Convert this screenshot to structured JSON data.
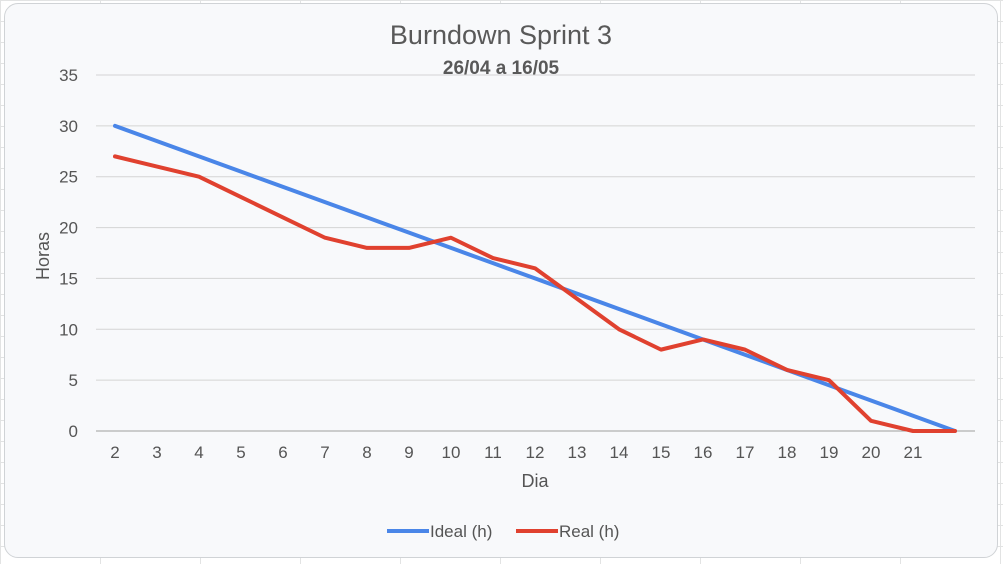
{
  "chart_data": {
    "type": "line",
    "title": "Burndown Sprint 3",
    "subtitle": "26/04 a 16/05",
    "xlabel": "Dia",
    "ylabel": "Horas",
    "ylim": [
      0,
      35
    ],
    "yticks": [
      0,
      5,
      10,
      15,
      20,
      25,
      30,
      35
    ],
    "categories": [
      "2",
      "3",
      "4",
      "5",
      "6",
      "7",
      "8",
      "9",
      "10",
      "11",
      "12",
      "13",
      "14",
      "15",
      "16",
      "17",
      "18",
      "19",
      "20",
      "21",
      ""
    ],
    "grid": true,
    "legend_position": "bottom",
    "series": [
      {
        "name": "Ideal (h)",
        "color": "#4a86e8",
        "values": [
          30,
          28.5,
          27,
          25.5,
          24,
          22.5,
          21,
          19.5,
          18,
          16.5,
          15,
          13.5,
          12,
          10.5,
          9,
          7.5,
          6,
          4.5,
          3,
          1.5,
          0
        ]
      },
      {
        "name": "Real (h)",
        "color": "#e0412f",
        "values": [
          27,
          26,
          25,
          23,
          21,
          19,
          18,
          18,
          19,
          17,
          16,
          13,
          10,
          8,
          9,
          8,
          6,
          5,
          1,
          0,
          0
        ]
      }
    ]
  }
}
